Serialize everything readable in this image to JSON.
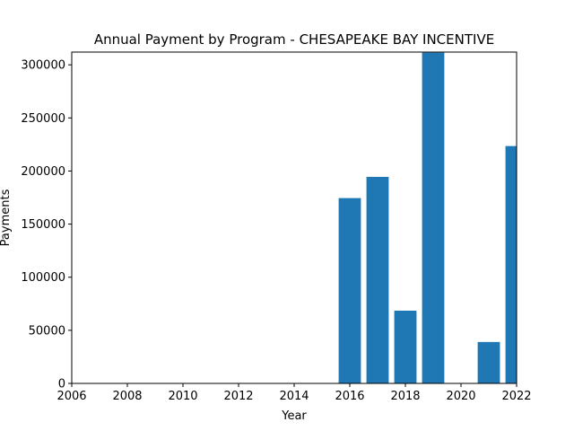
{
  "chart_data": {
    "type": "bar",
    "title": "Annual Payment by Program - CHESAPEAKE BAY INCENTIVE",
    "xlabel": "Year",
    "ylabel": "Payments",
    "x": [
      2016,
      2017,
      2018,
      2019,
      2021,
      2022
    ],
    "values": [
      174500,
      194500,
      68500,
      311500,
      39000,
      223500
    ],
    "xlim": [
      2006,
      2022
    ],
    "ylim": [
      0,
      312000
    ],
    "xticks": [
      2006,
      2008,
      2010,
      2012,
      2014,
      2016,
      2018,
      2020,
      2022
    ],
    "yticks": [
      0,
      50000,
      100000,
      150000,
      200000,
      250000,
      300000
    ],
    "bar_width": 0.8,
    "bar_color": "#1f77b4",
    "grid": false,
    "legend": "none"
  }
}
